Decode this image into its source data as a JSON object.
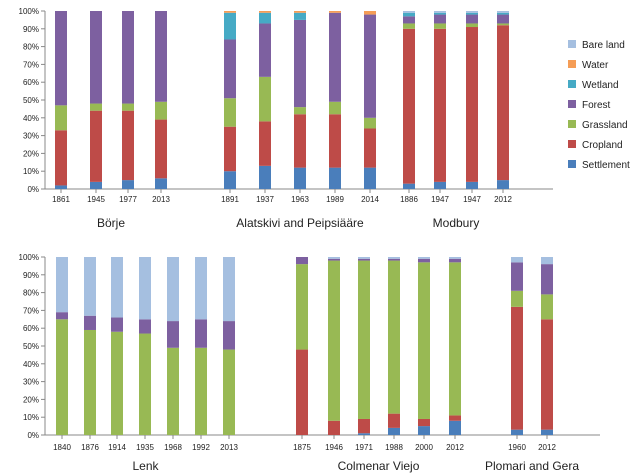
{
  "chart_data": [
    {
      "type": "bar",
      "stacked": true,
      "ylim": [
        0,
        100
      ],
      "yticks": [
        "0%",
        "10%",
        "20%",
        "30%",
        "40%",
        "50%",
        "60%",
        "70%",
        "80%",
        "90%",
        "100%"
      ],
      "grid": false,
      "legend": "right",
      "groups": [
        {
          "label": "Börje",
          "years": [
            "1861",
            "1945",
            "1977",
            "2013"
          ],
          "stacks": [
            {
              "Settlement": 2,
              "Cropland": 31,
              "Grassland": 14,
              "Forest": 53,
              "Wetland": 0,
              "Water": 0,
              "Bare land": 0
            },
            {
              "Settlement": 4,
              "Cropland": 40,
              "Grassland": 4,
              "Forest": 52,
              "Wetland": 0,
              "Water": 0,
              "Bare land": 0
            },
            {
              "Settlement": 5,
              "Cropland": 39,
              "Grassland": 4,
              "Forest": 52,
              "Wetland": 0,
              "Water": 0,
              "Bare land": 0
            },
            {
              "Settlement": 6,
              "Cropland": 33,
              "Grassland": 10,
              "Forest": 51,
              "Wetland": 0,
              "Water": 0,
              "Bare land": 0
            }
          ]
        },
        {
          "label": "Alatskivi and Peipsiääre",
          "years": [
            "1891",
            "1937",
            "1963",
            "1989",
            "2014"
          ],
          "stacks": [
            {
              "Settlement": 10,
              "Cropland": 25,
              "Grassland": 16,
              "Forest": 33,
              "Wetland": 15,
              "Water": 1,
              "Bare land": 0
            },
            {
              "Settlement": 13,
              "Cropland": 25,
              "Grassland": 25,
              "Forest": 30,
              "Wetland": 6,
              "Water": 1,
              "Bare land": 0
            },
            {
              "Settlement": 12,
              "Cropland": 30,
              "Grassland": 4,
              "Forest": 49,
              "Wetland": 4,
              "Water": 1,
              "Bare land": 0
            },
            {
              "Settlement": 12,
              "Cropland": 30,
              "Grassland": 7,
              "Forest": 50,
              "Wetland": 0,
              "Water": 1,
              "Bare land": 0
            },
            {
              "Settlement": 12,
              "Cropland": 22,
              "Grassland": 6,
              "Forest": 58,
              "Wetland": 0,
              "Water": 2,
              "Bare land": 0
            }
          ]
        },
        {
          "label": "Modbury",
          "years": [
            "1886",
            "1947",
            "1947",
            "2012"
          ],
          "stacks": [
            {
              "Settlement": 3,
              "Cropland": 87,
              "Grassland": 3,
              "Forest": 4,
              "Wetland": 2,
              "Water": 0,
              "Bare land": 1
            },
            {
              "Settlement": 4,
              "Cropland": 86,
              "Grassland": 3,
              "Forest": 5,
              "Wetland": 1,
              "Water": 0,
              "Bare land": 1
            },
            {
              "Settlement": 4,
              "Cropland": 87,
              "Grassland": 2,
              "Forest": 5,
              "Wetland": 1,
              "Water": 0,
              "Bare land": 1
            },
            {
              "Settlement": 5,
              "Cropland": 87,
              "Grassland": 1,
              "Forest": 5,
              "Wetland": 1,
              "Water": 0,
              "Bare land": 1
            }
          ]
        }
      ]
    },
    {
      "type": "bar",
      "stacked": true,
      "ylim": [
        0,
        100
      ],
      "yticks": [
        "0%",
        "10%",
        "20%",
        "30%",
        "40%",
        "50%",
        "60%",
        "70%",
        "80%",
        "90%",
        "100%"
      ],
      "grid": false,
      "groups": [
        {
          "label": "Lenk",
          "years": [
            "1840",
            "1876",
            "1914",
            "1935",
            "1968",
            "1992",
            "2013"
          ],
          "stacks": [
            {
              "Settlement": 0,
              "Cropland": 0,
              "Grassland": 65,
              "Forest": 4,
              "Wetland": 0,
              "Water": 0,
              "Bare land": 31
            },
            {
              "Settlement": 0,
              "Cropland": 0,
              "Grassland": 59,
              "Forest": 8,
              "Wetland": 0,
              "Water": 0,
              "Bare land": 33
            },
            {
              "Settlement": 0,
              "Cropland": 0,
              "Grassland": 58,
              "Forest": 8,
              "Wetland": 0,
              "Water": 0,
              "Bare land": 34
            },
            {
              "Settlement": 0,
              "Cropland": 0,
              "Grassland": 57,
              "Forest": 8,
              "Wetland": 0,
              "Water": 0,
              "Bare land": 35
            },
            {
              "Settlement": 0,
              "Cropland": 0,
              "Grassland": 49,
              "Forest": 15,
              "Wetland": 0,
              "Water": 0,
              "Bare land": 36
            },
            {
              "Settlement": 0,
              "Cropland": 0,
              "Grassland": 49,
              "Forest": 16,
              "Wetland": 0,
              "Water": 0,
              "Bare land": 35
            },
            {
              "Settlement": 0,
              "Cropland": 0,
              "Grassland": 48,
              "Forest": 16,
              "Wetland": 0,
              "Water": 0,
              "Bare land": 36
            }
          ]
        },
        {
          "label": "Colmenar Viejo",
          "years": [
            "1875",
            "1946",
            "1971",
            "1988",
            "2000",
            "2012"
          ],
          "stacks": [
            {
              "Settlement": 0,
              "Cropland": 48,
              "Grassland": 48,
              "Forest": 4,
              "Wetland": 0,
              "Water": 0,
              "Bare land": 0
            },
            {
              "Settlement": 0,
              "Cropland": 8,
              "Grassland": 90,
              "Forest": 1,
              "Wetland": 0,
              "Water": 0,
              "Bare land": 1
            },
            {
              "Settlement": 1,
              "Cropland": 8,
              "Grassland": 89,
              "Forest": 1,
              "Wetland": 0,
              "Water": 0,
              "Bare land": 1
            },
            {
              "Settlement": 4,
              "Cropland": 8,
              "Grassland": 86,
              "Forest": 1,
              "Wetland": 0,
              "Water": 0,
              "Bare land": 1
            },
            {
              "Settlement": 5,
              "Cropland": 4,
              "Grassland": 88,
              "Forest": 2,
              "Wetland": 0,
              "Water": 0,
              "Bare land": 1
            },
            {
              "Settlement": 8,
              "Cropland": 3,
              "Grassland": 86,
              "Forest": 2,
              "Wetland": 0,
              "Water": 0,
              "Bare land": 1
            }
          ]
        },
        {
          "label": "Plomari and Gera",
          "years": [
            "1960",
            "2012"
          ],
          "stacks": [
            {
              "Settlement": 3,
              "Cropland": 69,
              "Grassland": 9,
              "Forest": 16,
              "Wetland": 0,
              "Water": 0,
              "Bare land": 3
            },
            {
              "Settlement": 3,
              "Cropland": 62,
              "Grassland": 14,
              "Forest": 17,
              "Wetland": 0,
              "Water": 0,
              "Bare land": 4
            }
          ]
        }
      ]
    }
  ],
  "legend": {
    "entries": [
      "Bare land",
      "Water",
      "Wetland",
      "Forest",
      "Grassland",
      "Cropland",
      "Settlement"
    ]
  },
  "colors": {
    "Settlement": "#4a7ebb",
    "Cropland": "#be4b48",
    "Grassland": "#98b954",
    "Forest": "#7d60a0",
    "Wetland": "#46aac5",
    "Water": "#f59d56",
    "Bare land": "#a5bfe0"
  }
}
